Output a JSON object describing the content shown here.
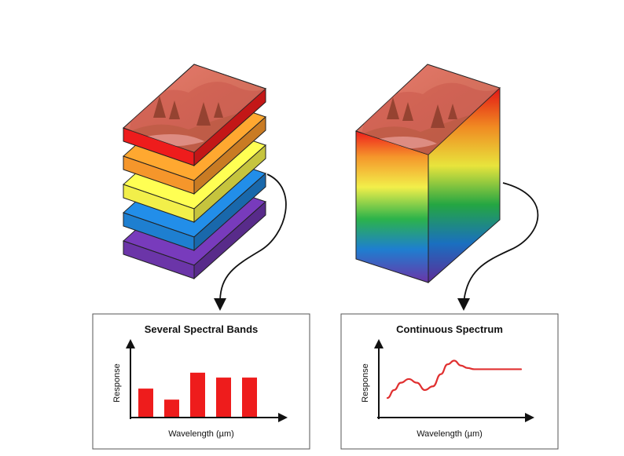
{
  "left_panel": {
    "title": "Several Spectral Bands",
    "ylabel": "Response",
    "xlabel": "Wavelength (µm)"
  },
  "right_panel": {
    "title": "Continuous Spectrum",
    "ylabel": "Response",
    "xlabel": "Wavelength (µm)"
  },
  "colors": {
    "red": "#ee1c1c",
    "orange": "#f5962b",
    "yellow": "#f2ef4a",
    "blue": "#1e7fd0",
    "violet": "#6b35a8",
    "bar": "#ee1c1c",
    "curve": "#e03030"
  },
  "band_stack": [
    {
      "color": "red",
      "label": "red band"
    },
    {
      "color": "orange",
      "label": "orange band"
    },
    {
      "color": "yellow",
      "label": "yellow band"
    },
    {
      "color": "blue",
      "label": "blue band"
    },
    {
      "color": "violet",
      "label": "violet band"
    }
  ],
  "chart_data": [
    {
      "type": "bar",
      "title": "Several Spectral Bands",
      "xlabel": "Wavelength (µm)",
      "ylabel": "Response",
      "categories": [
        "",
        "",
        "",
        "",
        ""
      ],
      "values": [
        0.46,
        0.28,
        0.72,
        0.64,
        0.64
      ],
      "ylim": [
        0,
        1
      ],
      "grid": false
    },
    {
      "type": "line",
      "title": "Continuous Spectrum",
      "xlabel": "Wavelength (µm)",
      "ylabel": "Response",
      "x": [
        0,
        0.05,
        0.1,
        0.16,
        0.22,
        0.28,
        0.34,
        0.4,
        0.45,
        0.5,
        0.55,
        0.6,
        0.65,
        0.7,
        0.8,
        0.9,
        1.0
      ],
      "y": [
        0.05,
        0.18,
        0.3,
        0.36,
        0.3,
        0.18,
        0.24,
        0.44,
        0.6,
        0.66,
        0.58,
        0.54,
        0.52,
        0.52,
        0.52,
        0.52,
        0.52
      ],
      "xlim": [
        0,
        1
      ],
      "ylim": [
        0,
        1
      ],
      "grid": false
    }
  ]
}
